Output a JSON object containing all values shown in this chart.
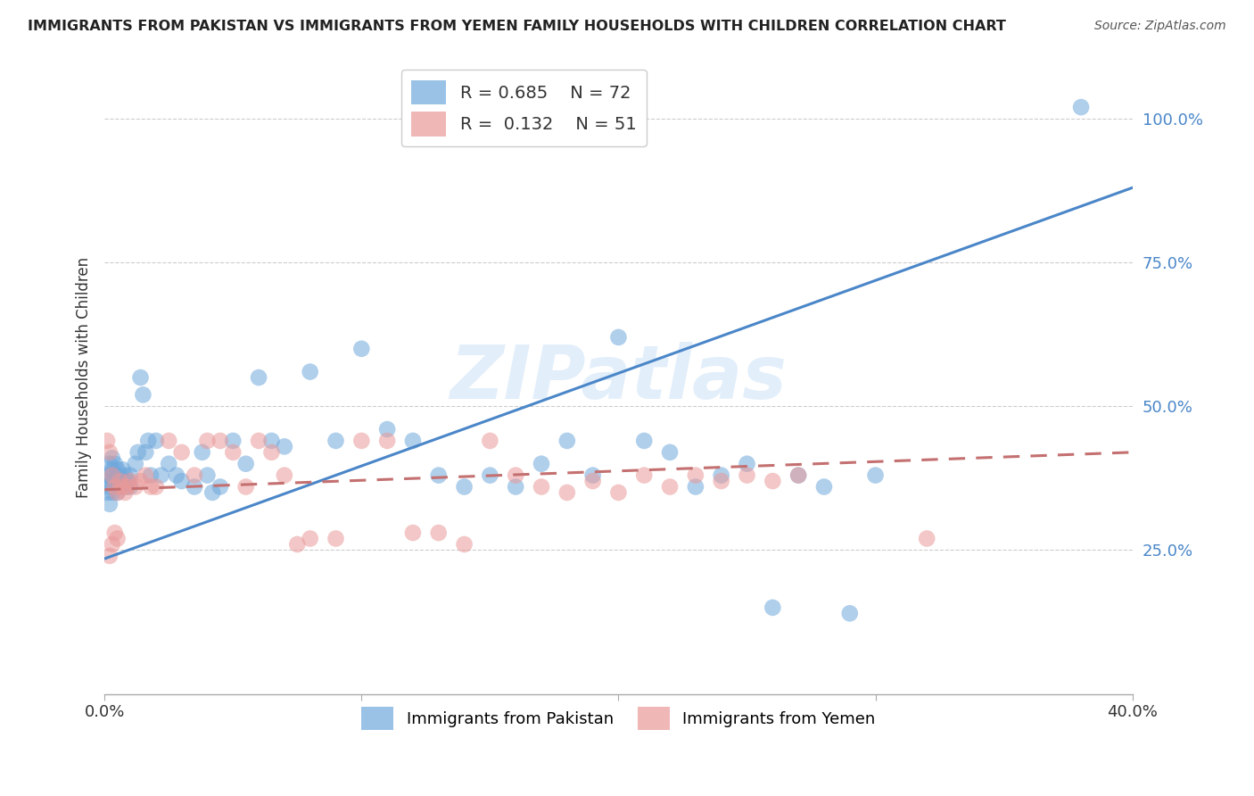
{
  "title": "IMMIGRANTS FROM PAKISTAN VS IMMIGRANTS FROM YEMEN FAMILY HOUSEHOLDS WITH CHILDREN CORRELATION CHART",
  "source": "Source: ZipAtlas.com",
  "ylabel": "Family Households with Children",
  "xlim": [
    0.0,
    0.4
  ],
  "ylim": [
    0.0,
    1.1
  ],
  "yticks": [
    0.25,
    0.5,
    0.75,
    1.0
  ],
  "ytick_labels": [
    "25.0%",
    "50.0%",
    "75.0%",
    "100.0%"
  ],
  "xticks": [
    0.0,
    0.1,
    0.2,
    0.3,
    0.4
  ],
  "xtick_labels": [
    "0.0%",
    "",
    "",
    "",
    "40.0%"
  ],
  "pakistan_R": 0.685,
  "pakistan_N": 72,
  "yemen_R": 0.132,
  "yemen_N": 51,
  "pakistan_color": "#6fa8dc",
  "yemen_color": "#ea9999",
  "pakistan_line_color": "#4a86c8",
  "yemen_line_color": "#c47070",
  "background_color": "#ffffff",
  "grid_color": "#cccccc",
  "watermark": "ZIPatlas",
  "pakistan_x": [
    0.001,
    0.001,
    0.001,
    0.002,
    0.002,
    0.002,
    0.002,
    0.003,
    0.003,
    0.003,
    0.003,
    0.004,
    0.004,
    0.004,
    0.005,
    0.005,
    0.005,
    0.006,
    0.006,
    0.007,
    0.007,
    0.008,
    0.008,
    0.009,
    0.01,
    0.01,
    0.012,
    0.013,
    0.014,
    0.015,
    0.016,
    0.017,
    0.018,
    0.02,
    0.022,
    0.025,
    0.028,
    0.03,
    0.035,
    0.038,
    0.04,
    0.042,
    0.045,
    0.05,
    0.055,
    0.06,
    0.065,
    0.07,
    0.08,
    0.09,
    0.1,
    0.11,
    0.12,
    0.13,
    0.14,
    0.15,
    0.16,
    0.17,
    0.18,
    0.19,
    0.2,
    0.21,
    0.22,
    0.23,
    0.24,
    0.25,
    0.26,
    0.27,
    0.28,
    0.29,
    0.3,
    0.38
  ],
  "pakistan_y": [
    0.35,
    0.37,
    0.38,
    0.33,
    0.36,
    0.38,
    0.4,
    0.35,
    0.37,
    0.39,
    0.41,
    0.36,
    0.38,
    0.4,
    0.35,
    0.37,
    0.39,
    0.36,
    0.38,
    0.37,
    0.39,
    0.36,
    0.38,
    0.37,
    0.36,
    0.38,
    0.4,
    0.42,
    0.55,
    0.52,
    0.42,
    0.44,
    0.38,
    0.44,
    0.38,
    0.4,
    0.38,
    0.37,
    0.36,
    0.42,
    0.38,
    0.35,
    0.36,
    0.44,
    0.4,
    0.55,
    0.44,
    0.43,
    0.56,
    0.44,
    0.6,
    0.46,
    0.44,
    0.38,
    0.36,
    0.38,
    0.36,
    0.4,
    0.44,
    0.38,
    0.62,
    0.44,
    0.42,
    0.36,
    0.38,
    0.4,
    0.15,
    0.38,
    0.36,
    0.14,
    0.38,
    1.02
  ],
  "yemen_x": [
    0.001,
    0.002,
    0.002,
    0.003,
    0.003,
    0.004,
    0.004,
    0.005,
    0.005,
    0.006,
    0.007,
    0.008,
    0.009,
    0.01,
    0.012,
    0.014,
    0.016,
    0.018,
    0.02,
    0.025,
    0.03,
    0.035,
    0.04,
    0.045,
    0.05,
    0.055,
    0.06,
    0.065,
    0.07,
    0.075,
    0.08,
    0.09,
    0.1,
    0.11,
    0.12,
    0.13,
    0.14,
    0.15,
    0.16,
    0.17,
    0.18,
    0.19,
    0.2,
    0.21,
    0.22,
    0.23,
    0.24,
    0.25,
    0.26,
    0.27,
    0.32
  ],
  "yemen_y": [
    0.44,
    0.42,
    0.24,
    0.38,
    0.26,
    0.36,
    0.28,
    0.35,
    0.27,
    0.37,
    0.36,
    0.35,
    0.36,
    0.37,
    0.36,
    0.37,
    0.38,
    0.36,
    0.36,
    0.44,
    0.42,
    0.38,
    0.44,
    0.44,
    0.42,
    0.36,
    0.44,
    0.42,
    0.38,
    0.26,
    0.27,
    0.27,
    0.44,
    0.44,
    0.28,
    0.28,
    0.26,
    0.44,
    0.38,
    0.36,
    0.35,
    0.37,
    0.35,
    0.38,
    0.36,
    0.38,
    0.37,
    0.38,
    0.37,
    0.38,
    0.27
  ],
  "pk_line_x": [
    0.0,
    0.4
  ],
  "pk_line_y": [
    0.235,
    0.88
  ],
  "ye_line_x": [
    0.0,
    0.4
  ],
  "ye_line_y": [
    0.355,
    0.42
  ]
}
